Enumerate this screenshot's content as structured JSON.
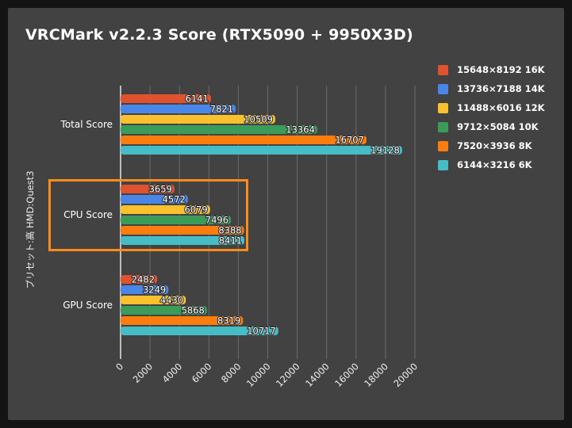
{
  "chart_data": {
    "type": "bar",
    "orientation": "horizontal",
    "title": "VRCMark v2.2.3 Score (RTX5090 + 9950X3D)",
    "ylabel": "プリセット:高 HMD:Quest3",
    "xlabel": "",
    "categories": [
      "Total Score",
      "CPU Score",
      "GPU Score"
    ],
    "xlim": [
      0,
      20000
    ],
    "x_ticks": [
      "0",
      "2000",
      "4000",
      "6000",
      "8000",
      "10000",
      "12000",
      "14000",
      "16000",
      "18000",
      "20000"
    ],
    "grid": "vertical",
    "legend_position": "right",
    "highlight_category": "CPU Score",
    "highlight_color": "#ff8c1a",
    "series": [
      {
        "name": "15648×8192 16K",
        "color": "#e0522e",
        "values": [
          6141,
          3659,
          2482
        ],
        "labels": [
          "6141",
          "3659",
          "2482"
        ]
      },
      {
        "name": "13736×7188 14K",
        "color": "#4a86e8",
        "values": [
          7821,
          4572,
          3249
        ],
        "labels": [
          "7821",
          "4572",
          "3249"
        ]
      },
      {
        "name": "11488×6016 12K",
        "color": "#fbc02d",
        "values": [
          10509,
          6079,
          4430
        ],
        "labels": [
          "10509",
          "6079",
          "4430"
        ]
      },
      {
        "name": "9712×5084 10K",
        "color": "#3b9c5a",
        "values": [
          13364,
          7496,
          5868
        ],
        "labels": [
          "13364",
          "7496",
          "5868"
        ]
      },
      {
        "name": "7520×3936  8K",
        "color": "#fb7d0d",
        "values": [
          16707,
          8388,
          8319
        ],
        "labels": [
          "16707",
          "8388",
          "8319"
        ]
      },
      {
        "name": "6144×3216  6K",
        "color": "#46bdc6",
        "values": [
          19128,
          8411,
          10717
        ],
        "labels": [
          "19128",
          "8411",
          "10717"
        ]
      }
    ]
  }
}
